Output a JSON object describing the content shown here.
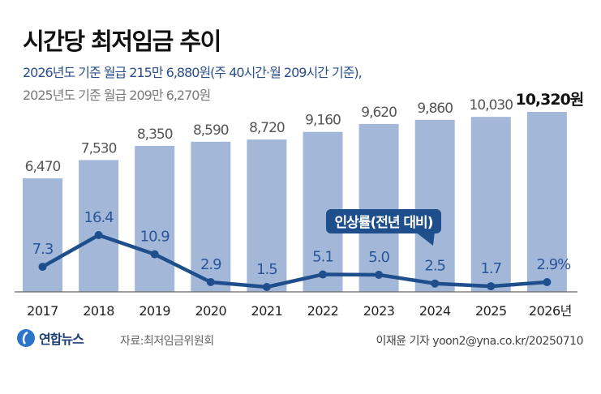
{
  "header": {
    "title": "시간당 최저임금 추이",
    "subtitle_2026": "2026년도 기준 월급 215만 6,880원(주 40시간·월 209시간 기준),",
    "subtitle_2025": "2025년도 기준 월급 209만 6,270원"
  },
  "footer": {
    "logo_text": "연합뉴스",
    "source": "자료:최저임금위원회",
    "credit": "이재윤 기자 yoon2@yna.co.kr/20250710"
  },
  "colors": {
    "bar": "#a3b8d8",
    "line": "#1f4e8c",
    "bar_label": "#555555",
    "rate_label": "#2a5699",
    "callout": "#1f4e8c"
  },
  "chart_data": {
    "type": "bar",
    "title": "시간당 최저임금 추이",
    "categories": [
      "2017",
      "2018",
      "2019",
      "2020",
      "2021",
      "2022",
      "2023",
      "2024",
      "2025",
      "2026"
    ],
    "category_labels": [
      "2017",
      "2018",
      "2019",
      "2020",
      "2021",
      "2022",
      "2023",
      "2024",
      "2025",
      "2026년"
    ],
    "series": [
      {
        "name": "시간당 최저임금(원)",
        "type": "bar",
        "values": [
          6470,
          7530,
          8350,
          8590,
          8720,
          9160,
          9620,
          9860,
          10030,
          10320
        ],
        "labels": [
          "6,470",
          "7,530",
          "8,350",
          "8,590",
          "8,720",
          "9,160",
          "9,620",
          "9,860",
          "10,030",
          "10,320원"
        ]
      },
      {
        "name": "인상률(전년 대비)",
        "type": "line",
        "values": [
          7.3,
          16.4,
          10.9,
          2.9,
          1.5,
          5.1,
          5.0,
          2.5,
          1.7,
          2.9
        ],
        "labels": [
          "7.3",
          "16.4",
          "10.9",
          "2.9",
          "1.5",
          "5.1",
          "5.0",
          "2.5",
          "1.7",
          "2.9%"
        ]
      }
    ],
    "callout": "인상률(전년 대비)",
    "ylim_bar": [
      0,
      10320
    ],
    "ylim_line": [
      0,
      30
    ],
    "grid": false,
    "legend": "none"
  }
}
